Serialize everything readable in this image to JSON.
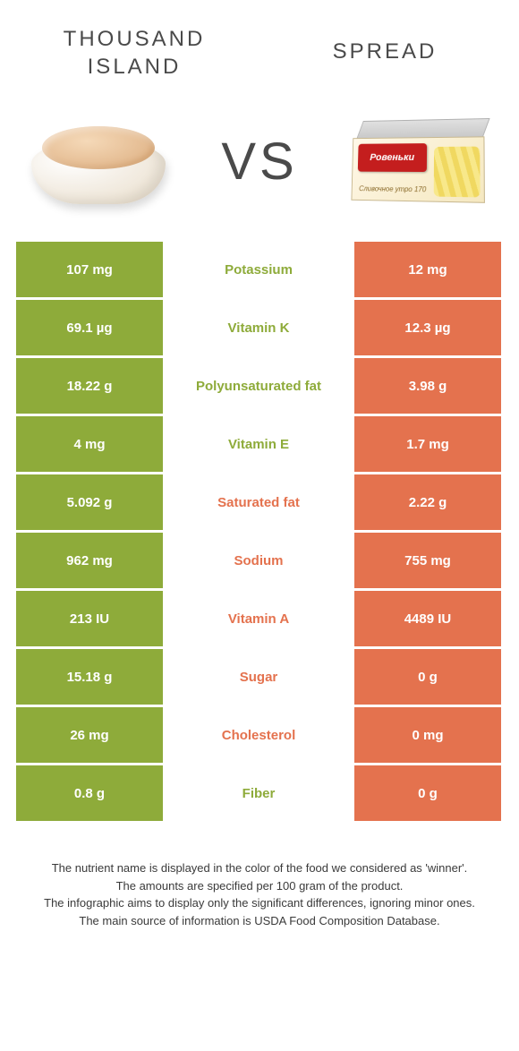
{
  "colors": {
    "green": "#8eab3a",
    "orange": "#e4724e",
    "text_dark": "#4a4a4a"
  },
  "header": {
    "left_title": "THOUSAND ISLAND",
    "right_title": "SPREAD",
    "vs": "VS"
  },
  "product_box": {
    "brand": "Ровеньки",
    "subtext": "Сливочное утро 170"
  },
  "rows": [
    {
      "left": "107 mg",
      "label": "Potassium",
      "right": "12 mg",
      "winner": "left"
    },
    {
      "left": "69.1 µg",
      "label": "Vitamin K",
      "right": "12.3 µg",
      "winner": "left"
    },
    {
      "left": "18.22 g",
      "label": "Polyunsaturated fat",
      "right": "3.98 g",
      "winner": "left"
    },
    {
      "left": "4 mg",
      "label": "Vitamin E",
      "right": "1.7 mg",
      "winner": "left"
    },
    {
      "left": "5.092 g",
      "label": "Saturated fat",
      "right": "2.22 g",
      "winner": "right"
    },
    {
      "left": "962 mg",
      "label": "Sodium",
      "right": "755 mg",
      "winner": "right"
    },
    {
      "left": "213 IU",
      "label": "Vitamin A",
      "right": "4489 IU",
      "winner": "right"
    },
    {
      "left": "15.18 g",
      "label": "Sugar",
      "right": "0 g",
      "winner": "right"
    },
    {
      "left": "26 mg",
      "label": "Cholesterol",
      "right": "0 mg",
      "winner": "right"
    },
    {
      "left": "0.8 g",
      "label": "Fiber",
      "right": "0 g",
      "winner": "left"
    }
  ],
  "footer": {
    "line1": "The nutrient name is displayed in the color of the food we considered as 'winner'.",
    "line2": "The amounts are specified per 100 gram of the product.",
    "line3": "The infographic aims to display only the significant differences, ignoring minor ones.",
    "line4": "The main source of information is USDA Food Composition Database."
  }
}
